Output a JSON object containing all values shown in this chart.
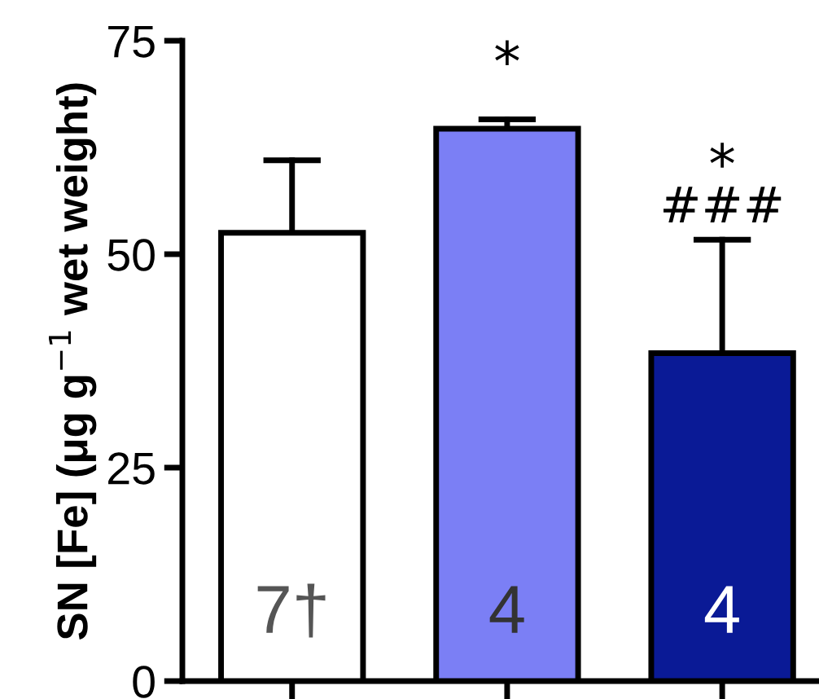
{
  "chart_data": {
    "type": "bar",
    "ylabel": "SN [Fe] (μg g$^{−1}$ wet weight)",
    "categories": [
      null,
      null,
      null
    ],
    "values": [
      52.5,
      64.7,
      38.4
    ],
    "colors": [
      "#ffffff",
      "#7b7ff5",
      "#0a1a96"
    ],
    "errors": [
      [
        52.5,
        61
      ],
      [
        64.7,
        65.8
      ],
      [
        38.4,
        51.7
      ]
    ],
    "ylim": [
      0,
      75
    ],
    "yticks": [
      0,
      25,
      50,
      75
    ],
    "grid": false,
    "annotations": [
      "7†",
      "4",
      "4",
      "*",
      "*",
      "###"
    ]
  }
}
